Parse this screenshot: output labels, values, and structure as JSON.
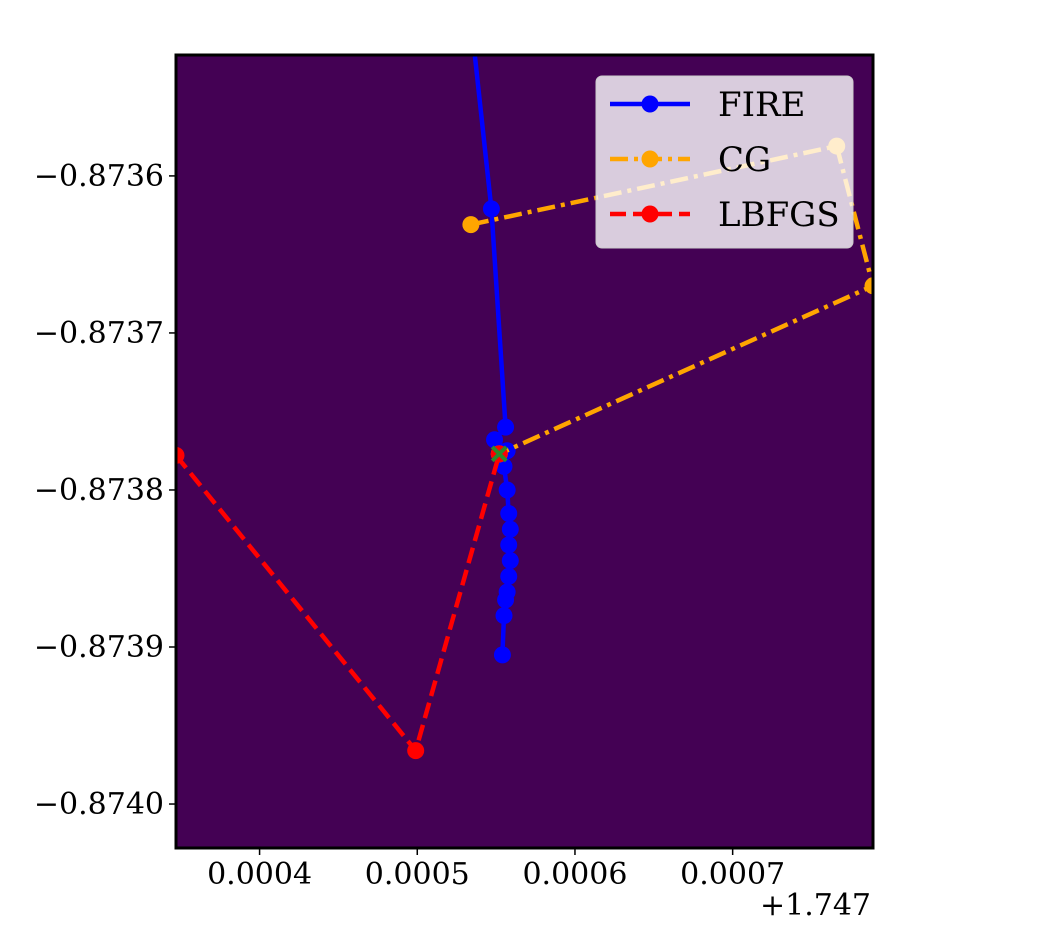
{
  "chart_data": {
    "type": "line",
    "title": "",
    "xlabel": "",
    "ylabel": "",
    "x_offset_text": "+1.747",
    "xlim": [
      0.000347,
      0.000789
    ],
    "ylim": [
      -0.874028,
      -0.873523
    ],
    "xticks": [
      0.0004,
      0.0005,
      0.0006,
      0.0007
    ],
    "xtick_labels": [
      "0.0004",
      "0.0005",
      "0.0006",
      "0.0007"
    ],
    "yticks": [
      -0.8736,
      -0.8737,
      -0.8738,
      -0.8739,
      -0.874
    ],
    "ytick_labels": [
      "−0.8736",
      "−0.8737",
      "−0.8738",
      "−0.8739",
      "−0.8740"
    ],
    "background_color": "#440154",
    "grid": false,
    "legend": {
      "position": "upper-right"
    },
    "series": [
      {
        "name": "FIRE",
        "color": "#0000ff",
        "linestyle": "solid",
        "points": [
          [
            0.000534,
            -0.8735
          ],
          [
            0.000547,
            -0.873621
          ],
          [
            0.000556,
            -0.87376
          ],
          [
            0.000549,
            -0.873768
          ],
          [
            0.000557,
            -0.873775
          ],
          [
            0.000555,
            -0.873785
          ],
          [
            0.000557,
            -0.8738
          ],
          [
            0.000558,
            -0.873815
          ],
          [
            0.000559,
            -0.873825
          ],
          [
            0.000558,
            -0.873835
          ],
          [
            0.000559,
            -0.873845
          ],
          [
            0.000558,
            -0.873855
          ],
          [
            0.000557,
            -0.873865
          ],
          [
            0.000556,
            -0.87387
          ],
          [
            0.000555,
            -0.87388
          ],
          [
            0.000554,
            -0.873905
          ]
        ]
      },
      {
        "name": "CG",
        "color": "#ffa500",
        "linestyle": "dashdot",
        "points": [
          [
            0.000534,
            -0.873631
          ],
          [
            0.000766,
            -0.873581
          ],
          [
            0.000789,
            -0.87367
          ],
          [
            0.000552,
            -0.873777
          ]
        ]
      },
      {
        "name": "LBFGS",
        "color": "#ff0000",
        "linestyle": "dashed",
        "points": [
          [
            0.000347,
            -0.873778
          ],
          [
            0.000499,
            -0.873966
          ],
          [
            0.000552,
            -0.873777
          ]
        ]
      }
    ],
    "annotations": [
      {
        "type": "x-marker",
        "x": 0.000552,
        "y": -0.873777,
        "color": "#2a8a2a"
      }
    ]
  }
}
